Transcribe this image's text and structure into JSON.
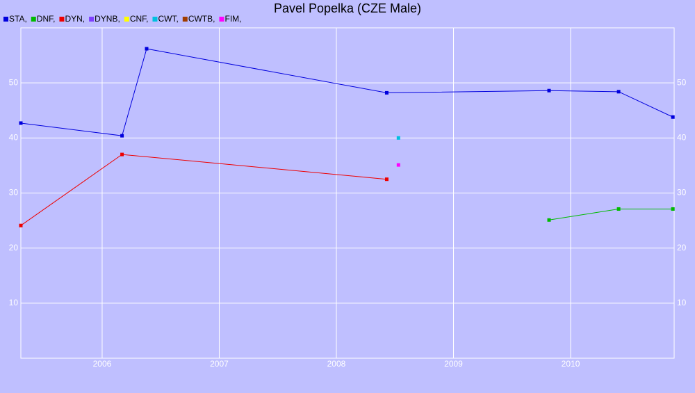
{
  "chart_data": {
    "type": "line",
    "title": "Pavel Popelka (CZE Male)",
    "xlim": [
      2005.306,
      2010.884
    ],
    "xticks": [
      2006,
      2007,
      2008,
      2009,
      2010
    ],
    "ylim": [
      0,
      60
    ],
    "yticks": [
      10,
      20,
      30,
      40,
      50
    ],
    "grid": true,
    "series": [
      {
        "name": "STA,",
        "color": "#0000dd",
        "x": [
          2005.306,
          2006.17,
          2006.38,
          2008.43,
          2009.816,
          2010.41,
          2010.873
        ],
        "values": [
          42.7,
          40.4,
          56.2,
          48.2,
          48.6,
          48.4,
          43.8
        ]
      },
      {
        "name": "DNF,",
        "color": "#00bb00",
        "x": [
          2009.816,
          2010.41,
          2010.873
        ],
        "values": [
          25.1,
          27.1,
          27.1
        ]
      },
      {
        "name": "DYN,",
        "color": "#ee0000",
        "x": [
          2005.306,
          2006.17,
          2008.43
        ],
        "values": [
          24.1,
          37.0,
          32.5
        ]
      },
      {
        "name": "DYNB,",
        "color": "#7f3fff",
        "x": [],
        "values": []
      },
      {
        "name": "CNF,",
        "color": "#ffff00",
        "x": [],
        "values": []
      },
      {
        "name": "CWT,",
        "color": "#00c0e0",
        "x": [
          2008.53
        ],
        "values": [
          40.0
        ]
      },
      {
        "name": "CWTB,",
        "color": "#a03c00",
        "x": [],
        "values": []
      },
      {
        "name": "FIM,",
        "color": "#ff00ff",
        "x": [
          2008.53
        ],
        "values": [
          35.1
        ]
      }
    ]
  }
}
